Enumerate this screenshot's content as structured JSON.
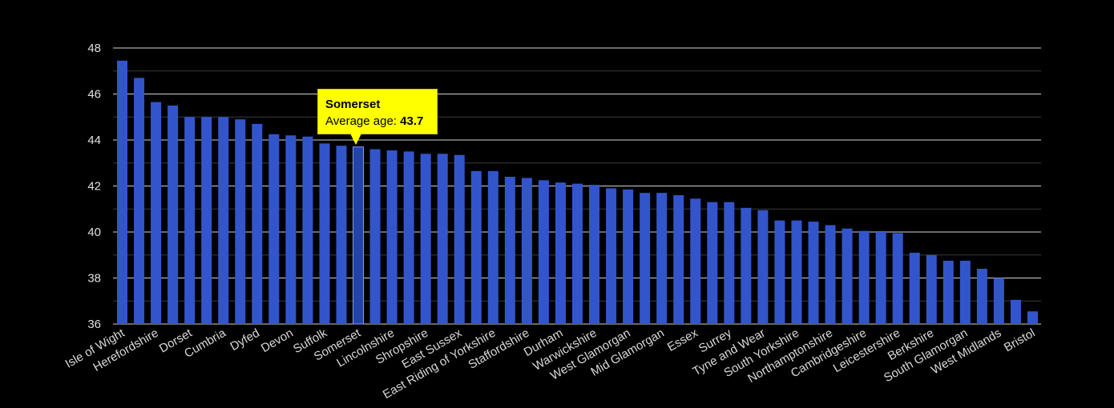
{
  "tooltip": {
    "title": "Somerset",
    "label": "Average age:",
    "value": "43.7"
  },
  "chart_data": {
    "type": "bar",
    "title": "",
    "xlabel": "",
    "ylabel": "",
    "ylim": [
      36,
      48
    ],
    "yticks": [
      36,
      38,
      40,
      42,
      44,
      46,
      48
    ],
    "grid": true,
    "highlighted": "Somerset",
    "colors": {
      "bar": "#3355cc",
      "highlight_bar": "#2244aa",
      "highlight_outline": "#8899ff",
      "background": "#000000",
      "grid": "#ffffff"
    },
    "categories": [
      "Isle of Wight",
      "",
      "Herefordshire",
      "",
      "Dorset",
      "",
      "Cumbria",
      "",
      "Dyfed",
      "",
      "Devon",
      "",
      "Suffolk",
      "",
      "Somerset",
      "",
      "Lincolnshire",
      "",
      "Shropshire",
      "",
      "East Sussex",
      "",
      "East Riding of Yorkshire",
      "",
      "Staffordshire",
      "",
      "Durham",
      "",
      "Warwickshire",
      "",
      "West Glamorgan",
      "",
      "Mid Glamorgan",
      "",
      "Essex",
      "",
      "Surrey",
      "",
      "Tyne and Wear",
      "",
      "South Yorkshire",
      "",
      "Northamptonshire",
      "",
      "Cambridgeshire",
      "",
      "Leicestershire",
      "",
      "Berkshire",
      "",
      "South Glamorgan",
      "",
      "West Midlands",
      "",
      "Bristol"
    ],
    "values": [
      47.45,
      46.7,
      45.65,
      45.5,
      45.0,
      45.0,
      45.0,
      44.9,
      44.7,
      44.25,
      44.2,
      44.15,
      43.85,
      43.75,
      43.7,
      43.6,
      43.55,
      43.5,
      43.4,
      43.4,
      43.35,
      42.65,
      42.65,
      42.4,
      42.35,
      42.25,
      42.15,
      42.1,
      42.05,
      41.9,
      41.85,
      41.7,
      41.7,
      41.6,
      41.45,
      41.3,
      41.3,
      41.05,
      40.95,
      40.5,
      40.5,
      40.45,
      40.3,
      40.15,
      40.05,
      40.0,
      39.95,
      39.1,
      39.0,
      38.75,
      38.75,
      38.4,
      38.0,
      37.05,
      36.55
    ]
  }
}
